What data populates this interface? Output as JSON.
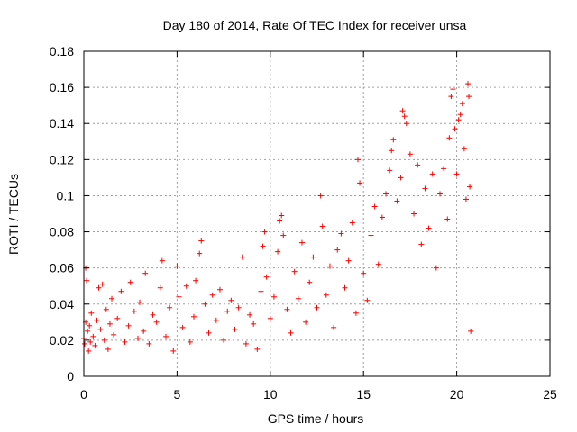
{
  "chart_data": {
    "type": "scatter",
    "title": "Day 180 of 2014, Rate Of TEC Index for receiver unsa",
    "xlabel": "GPS time / hours",
    "ylabel": "ROTI / TECUs",
    "xlim": [
      0,
      25
    ],
    "ylim": [
      0,
      0.18
    ],
    "xticks": [
      0,
      5,
      10,
      15,
      20,
      25
    ],
    "yticks": [
      0,
      0.02,
      0.04,
      0.06,
      0.08,
      0.1,
      0.12,
      0.14,
      0.16,
      0.18
    ],
    "xtick_labels": [
      "0",
      "5",
      "10",
      "15",
      "20",
      "25"
    ],
    "ytick_labels": [
      "0",
      "0.02",
      "0.04",
      "0.06",
      "0.08",
      "0.1",
      "0.12",
      "0.14",
      "0.16",
      "0.18"
    ],
    "grid": true,
    "marker": "+",
    "color": "#ff0000",
    "series": [
      {
        "name": "ROTI",
        "points": [
          [
            0.0,
            0.021
          ],
          [
            0.05,
            0.018
          ],
          [
            0.1,
            0.03
          ],
          [
            0.1,
            0.06
          ],
          [
            0.15,
            0.053
          ],
          [
            0.2,
            0.025
          ],
          [
            0.25,
            0.014
          ],
          [
            0.3,
            0.028
          ],
          [
            0.35,
            0.019
          ],
          [
            0.4,
            0.035
          ],
          [
            0.5,
            0.022
          ],
          [
            0.6,
            0.017
          ],
          [
            0.7,
            0.031
          ],
          [
            0.8,
            0.049
          ],
          [
            0.9,
            0.026
          ],
          [
            1.0,
            0.051
          ],
          [
            1.1,
            0.02
          ],
          [
            1.2,
            0.037
          ],
          [
            1.3,
            0.015
          ],
          [
            1.4,
            0.029
          ],
          [
            1.5,
            0.043
          ],
          [
            1.6,
            0.023
          ],
          [
            1.8,
            0.032
          ],
          [
            2.0,
            0.047
          ],
          [
            2.2,
            0.019
          ],
          [
            2.4,
            0.028
          ],
          [
            2.5,
            0.052
          ],
          [
            2.7,
            0.036
          ],
          [
            2.9,
            0.021
          ],
          [
            3.0,
            0.041
          ],
          [
            3.2,
            0.025
          ],
          [
            3.3,
            0.057
          ],
          [
            3.5,
            0.018
          ],
          [
            3.7,
            0.034
          ],
          [
            3.9,
            0.03
          ],
          [
            4.1,
            0.049
          ],
          [
            4.2,
            0.064
          ],
          [
            4.4,
            0.022
          ],
          [
            4.6,
            0.038
          ],
          [
            4.8,
            0.014
          ],
          [
            5.0,
            0.061
          ],
          [
            5.1,
            0.044
          ],
          [
            5.3,
            0.027
          ],
          [
            5.5,
            0.05
          ],
          [
            5.7,
            0.019
          ],
          [
            5.9,
            0.033
          ],
          [
            6.0,
            0.053
          ],
          [
            6.2,
            0.068
          ],
          [
            6.3,
            0.075
          ],
          [
            6.5,
            0.04
          ],
          [
            6.7,
            0.024
          ],
          [
            6.9,
            0.045
          ],
          [
            7.1,
            0.031
          ],
          [
            7.3,
            0.048
          ],
          [
            7.5,
            0.02
          ],
          [
            7.7,
            0.036
          ],
          [
            7.9,
            0.042
          ],
          [
            8.1,
            0.026
          ],
          [
            8.3,
            0.038
          ],
          [
            8.5,
            0.066
          ],
          [
            8.7,
            0.018
          ],
          [
            8.9,
            0.034
          ],
          [
            9.1,
            0.029
          ],
          [
            9.3,
            0.015
          ],
          [
            9.5,
            0.047
          ],
          [
            9.6,
            0.072
          ],
          [
            9.7,
            0.08
          ],
          [
            9.8,
            0.055
          ],
          [
            10.0,
            0.032
          ],
          [
            10.2,
            0.044
          ],
          [
            10.4,
            0.069
          ],
          [
            10.5,
            0.086
          ],
          [
            10.6,
            0.089
          ],
          [
            10.7,
            0.078
          ],
          [
            10.9,
            0.037
          ],
          [
            11.1,
            0.024
          ],
          [
            11.3,
            0.058
          ],
          [
            11.5,
            0.043
          ],
          [
            11.7,
            0.074
          ],
          [
            11.9,
            0.03
          ],
          [
            12.1,
            0.052
          ],
          [
            12.3,
            0.066
          ],
          [
            12.5,
            0.038
          ],
          [
            12.7,
            0.1
          ],
          [
            12.8,
            0.083
          ],
          [
            13.0,
            0.045
          ],
          [
            13.2,
            0.061
          ],
          [
            13.4,
            0.027
          ],
          [
            13.6,
            0.07
          ],
          [
            13.8,
            0.079
          ],
          [
            14.0,
            0.049
          ],
          [
            14.2,
            0.064
          ],
          [
            14.4,
            0.085
          ],
          [
            14.6,
            0.035
          ],
          [
            14.7,
            0.12
          ],
          [
            14.8,
            0.107
          ],
          [
            15.0,
            0.057
          ],
          [
            15.2,
            0.042
          ],
          [
            15.4,
            0.078
          ],
          [
            15.6,
            0.094
          ],
          [
            15.8,
            0.062
          ],
          [
            16.0,
            0.088
          ],
          [
            16.2,
            0.101
          ],
          [
            16.4,
            0.114
          ],
          [
            16.5,
            0.125
          ],
          [
            16.6,
            0.131
          ],
          [
            16.8,
            0.097
          ],
          [
            17.0,
            0.11
          ],
          [
            17.1,
            0.147
          ],
          [
            17.2,
            0.144
          ],
          [
            17.3,
            0.14
          ],
          [
            17.5,
            0.123
          ],
          [
            17.7,
            0.09
          ],
          [
            17.9,
            0.117
          ],
          [
            18.1,
            0.073
          ],
          [
            18.3,
            0.104
          ],
          [
            18.5,
            0.082
          ],
          [
            18.7,
            0.112
          ],
          [
            18.9,
            0.06
          ],
          [
            19.1,
            0.101
          ],
          [
            19.3,
            0.115
          ],
          [
            19.5,
            0.087
          ],
          [
            19.6,
            0.132
          ],
          [
            19.7,
            0.155
          ],
          [
            19.8,
            0.159
          ],
          [
            19.9,
            0.137
          ],
          [
            20.0,
            0.112
          ],
          [
            20.1,
            0.142
          ],
          [
            20.2,
            0.145
          ],
          [
            20.3,
            0.151
          ],
          [
            20.4,
            0.126
          ],
          [
            20.5,
            0.098
          ],
          [
            20.6,
            0.162
          ],
          [
            20.65,
            0.155
          ],
          [
            20.7,
            0.105
          ],
          [
            20.75,
            0.025
          ]
        ]
      }
    ]
  }
}
